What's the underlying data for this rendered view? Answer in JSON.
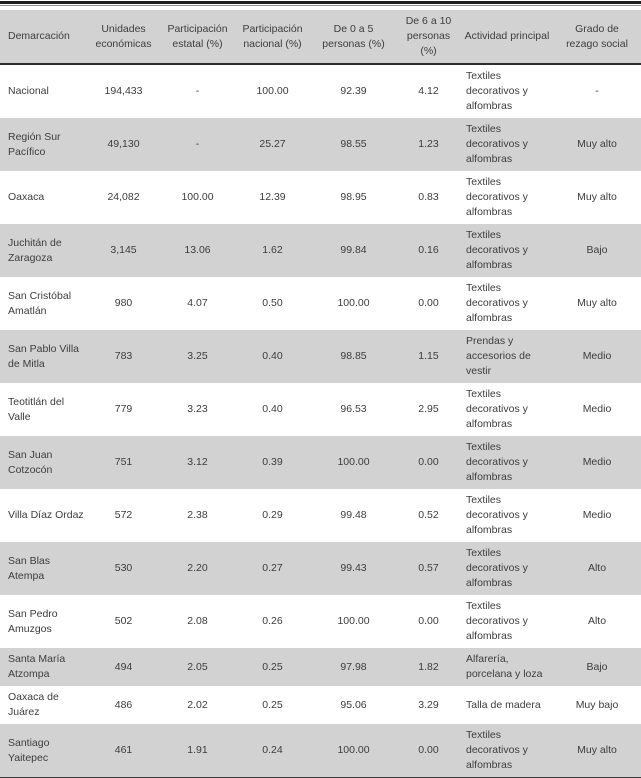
{
  "colors": {
    "row_shade": "#d2d2d2",
    "text": "#3d3d3d",
    "top_rule": "#1f1f1f"
  },
  "table": {
    "columns": [
      "Demarcación",
      "Unidades\neconómicas",
      "Participación\nestatal (%)",
      "Participación\nnacional (%)",
      "De 0 a 5\npersonas (%)",
      "De 6 a 10\npersonas\n(%)",
      "Actividad principal",
      "Grado de\nrezago social"
    ],
    "rows": [
      {
        "cells": [
          "Nacional",
          "194,433",
          "-",
          "100.00",
          "92.39",
          "4.12",
          "Textiles\ndecorativos y\nalfombras",
          "-"
        ]
      },
      {
        "cells": [
          "Región Sur\nPacífico",
          "49,130",
          "-",
          "25.27",
          "98.55",
          "1.23",
          "Textiles\ndecorativos y\nalfombras",
          "Muy alto"
        ]
      },
      {
        "cells": [
          "Oaxaca",
          "24,082",
          "100.00",
          "12.39",
          "98.95",
          "0.83",
          "Textiles\ndecorativos y\nalfombras",
          "Muy alto"
        ]
      },
      {
        "cells": [
          "Juchitán de\nZaragoza",
          "3,145",
          "13.06",
          "1.62",
          "99.84",
          "0.16",
          "Textiles\ndecorativos y\nalfombras",
          "Bajo"
        ]
      },
      {
        "cells": [
          "San Cristóbal\nAmatlán",
          "980",
          "4.07",
          "0.50",
          "100.00",
          "0.00",
          "Textiles\ndecorativos y\nalfombras",
          "Muy alto"
        ]
      },
      {
        "cells": [
          "San Pablo Villa\nde Mitla",
          "783",
          "3.25",
          "0.40",
          "98.85",
          "1.15",
          "Prendas y\naccesorios de\nvestir",
          "Medio"
        ]
      },
      {
        "cells": [
          "Teotitlán del\nValle",
          "779",
          "3.23",
          "0.40",
          "96.53",
          "2.95",
          "Textiles\ndecorativos y\nalfombras",
          "Medio"
        ]
      },
      {
        "cells": [
          "San Juan\nCotzocón",
          "751",
          "3.12",
          "0.39",
          "100.00",
          "0.00",
          "Textiles\ndecorativos y\nalfombras",
          "Medio"
        ]
      },
      {
        "cells": [
          "Villa Díaz Ordaz",
          "572",
          "2.38",
          "0.29",
          "99.48",
          "0.52",
          "Textiles\ndecorativos y\nalfombras",
          "Medio"
        ]
      },
      {
        "cells": [
          "San Blas\nAtempa",
          "530",
          "2.20",
          "0.27",
          "99.43",
          "0.57",
          "Textiles\ndecorativos y\nalfombras",
          "Alto"
        ]
      },
      {
        "cells": [
          "San Pedro\nAmuzgos",
          "502",
          "2.08",
          "0.26",
          "100.00",
          "0.00",
          "Textiles\ndecorativos y\nalfombras",
          "Alto"
        ]
      },
      {
        "cells": [
          "Santa María\nAtzompa",
          "494",
          "2.05",
          "0.25",
          "97.98",
          "1.82",
          "Alfarería,\nporcelana y loza",
          "Bajo"
        ]
      },
      {
        "cells": [
          "Oaxaca de\nJuárez",
          "486",
          "2.02",
          "0.25",
          "95.06",
          "3.29",
          "Talla de madera",
          "Muy bajo"
        ]
      },
      {
        "cells": [
          "Santiago\nYaitepec",
          "461",
          "1.91",
          "0.24",
          "100.00",
          "0.00",
          "Textiles\ndecorativos y\nalfombras",
          "Muy alto"
        ]
      }
    ]
  }
}
